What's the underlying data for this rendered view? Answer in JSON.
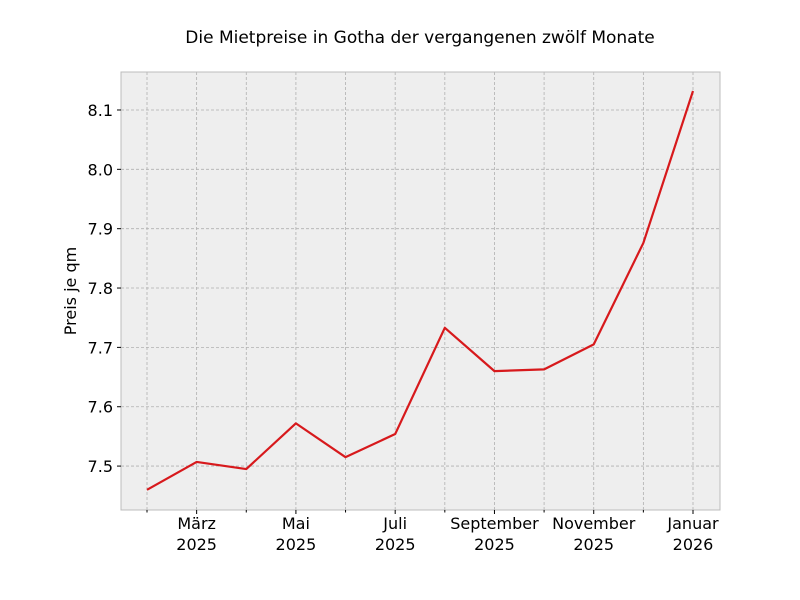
{
  "chart_data": {
    "type": "line",
    "title": "Die Mietpreise in Gotha der vergangenen zwölf Monate",
    "y_label": "Preis je qm",
    "categories": [
      null,
      "März\n2025",
      null,
      "Mai\n2025",
      null,
      "Juli\n2025",
      null,
      "September\n2025",
      null,
      "November\n2025",
      null,
      "Januar\n2026"
    ],
    "values": [
      7.46,
      7.507,
      7.495,
      7.572,
      7.515,
      7.554,
      7.733,
      7.66,
      7.663,
      7.705,
      7.876,
      8.132
    ],
    "color": "#d7191c",
    "ylim": [
      7.426,
      8.164
    ],
    "yticks": [
      7.5,
      7.6,
      7.7,
      7.8,
      7.9,
      {
        "value": 8.0,
        "label": "8.0"
      },
      8.1
    ],
    "grid": true
  }
}
